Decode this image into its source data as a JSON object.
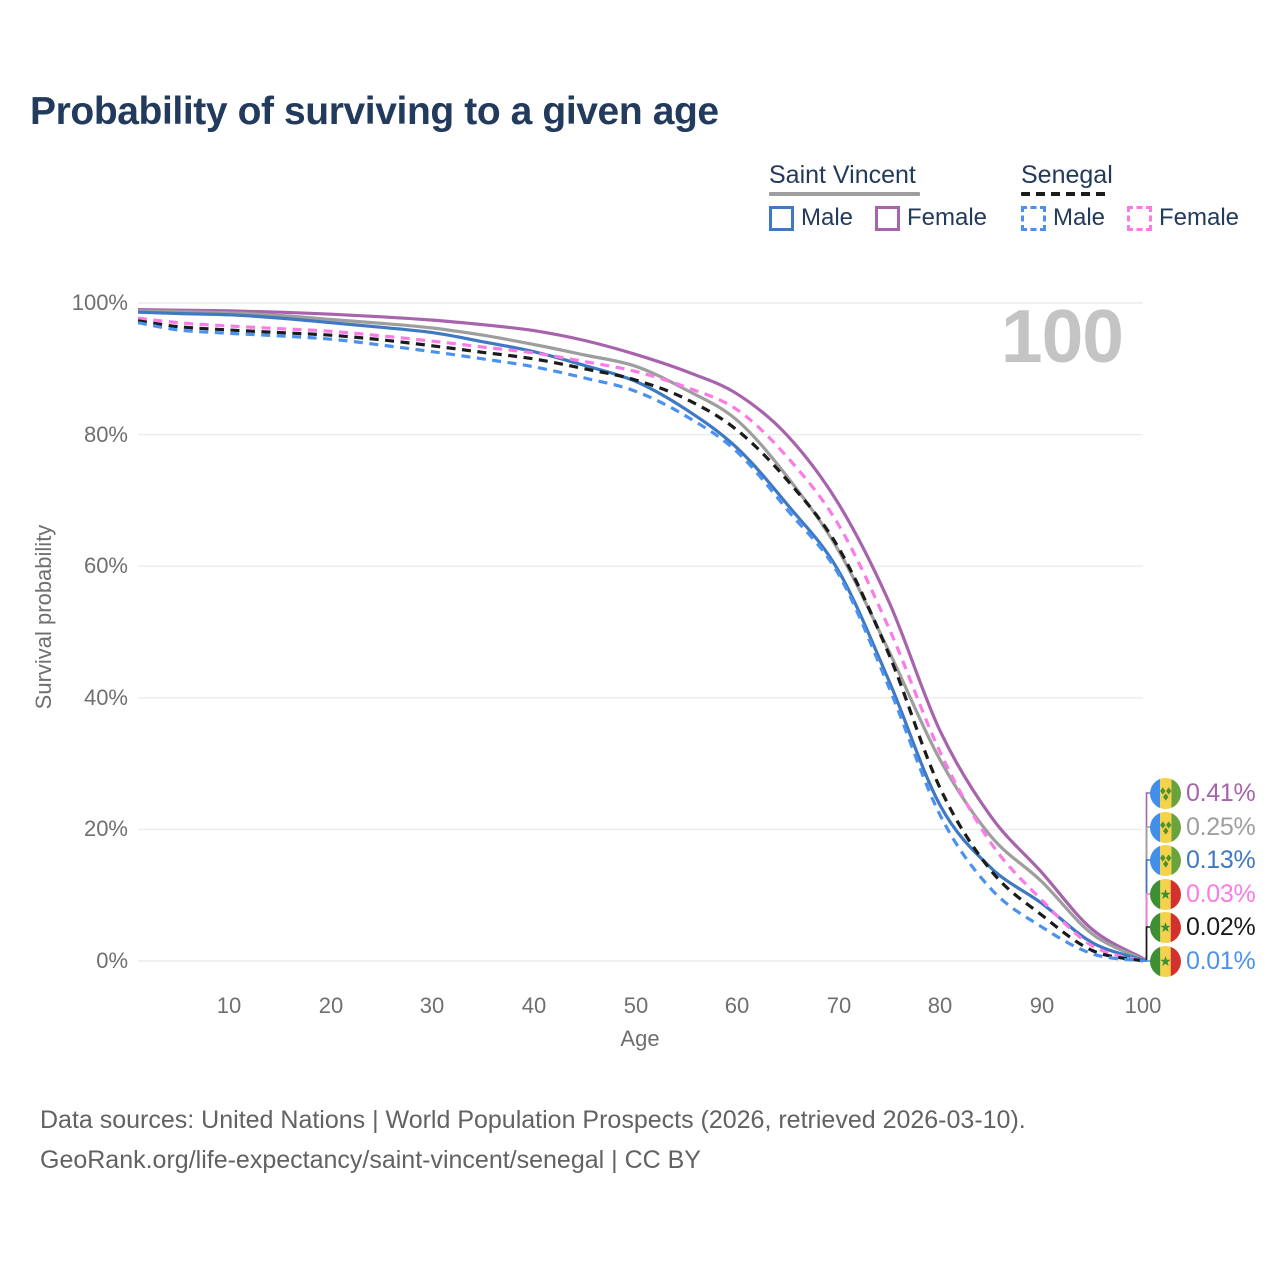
{
  "title": "Probability of surviving to a given age",
  "watermark": "100",
  "legend": {
    "groups": [
      {
        "name": "Saint Vincent",
        "line_style": "solid",
        "line_color": "#9e9e9e",
        "items": [
          {
            "label": "Male",
            "color": "#3e79c2",
            "box_style": "solid"
          },
          {
            "label": "Female",
            "color": "#a763ab",
            "box_style": "solid"
          }
        ]
      },
      {
        "name": "Senegal",
        "line_style": "dashed",
        "line_color": "#1b1b1b",
        "items": [
          {
            "label": "Male",
            "color": "#4b92f0",
            "box_style": "dashed"
          },
          {
            "label": "Female",
            "color": "#f97ce6",
            "box_style": "dashed"
          }
        ]
      }
    ]
  },
  "chart_data": {
    "type": "line",
    "title": "Probability of surviving to a given age",
    "xlabel": "Age",
    "ylabel": "Survival probability",
    "xlim": [
      1,
      100
    ],
    "ylim": [
      0,
      100
    ],
    "grid": "horizontal",
    "legend_position": "top-right",
    "x_ticks": [
      10,
      20,
      30,
      40,
      50,
      60,
      70,
      80,
      90,
      100
    ],
    "x_tick_labels": [
      "10",
      "20",
      "30",
      "40",
      "50",
      "60",
      "70",
      "80",
      "90",
      "100"
    ],
    "y_gridlines": [
      100,
      80,
      60,
      40,
      20,
      0
    ],
    "y_tick_labels": [
      "100%",
      "80%",
      "60%",
      "40%",
      "20%",
      "0%"
    ],
    "x": [
      1,
      5,
      10,
      15,
      20,
      25,
      30,
      35,
      40,
      45,
      50,
      55,
      60,
      65,
      70,
      75,
      80,
      85,
      90,
      95,
      100
    ],
    "series": [
      {
        "name": "Saint Vincent Female",
        "country": "Saint Vincent",
        "sex": "Female",
        "color": "#a763ab",
        "dashed": false,
        "end_label": "0.41%",
        "flag": "saint-vincent",
        "values": [
          99.0,
          98.9,
          98.8,
          98.6,
          98.3,
          97.9,
          97.4,
          96.7,
          95.8,
          94.3,
          92.2,
          89.6,
          86.2,
          79.8,
          69.5,
          54.5,
          35.0,
          22.0,
          13.5,
          4.8,
          0.41
        ]
      },
      {
        "name": "Saint Vincent",
        "country": "Saint Vincent",
        "sex": "Both",
        "color": "#9e9e9e",
        "dashed": false,
        "end_label": "0.25%",
        "flag": "saint-vincent",
        "values": [
          98.8,
          98.7,
          98.5,
          98.1,
          97.5,
          96.9,
          96.2,
          95.1,
          93.7,
          92.1,
          90.4,
          86.8,
          82.2,
          73.5,
          62.4,
          47.0,
          30.6,
          19.0,
          12.1,
          4.1,
          0.25
        ]
      },
      {
        "name": "Saint Vincent Male",
        "country": "Saint Vincent",
        "sex": "Male",
        "color": "#3e79c2",
        "dashed": false,
        "end_label": "0.13%",
        "flag": "saint-vincent",
        "values": [
          98.6,
          98.4,
          98.2,
          97.7,
          97.0,
          96.3,
          95.5,
          94.1,
          92.6,
          90.5,
          88.1,
          83.8,
          78.0,
          69.3,
          59.3,
          42.5,
          23.7,
          14.2,
          8.8,
          2.8,
          0.13
        ]
      },
      {
        "name": "Senegal Female",
        "country": "Senegal",
        "sex": "Female",
        "color": "#f97ce6",
        "dashed": true,
        "end_label": "0.03%",
        "flag": "senegal",
        "values": [
          97.7,
          97.0,
          96.5,
          96.1,
          95.7,
          95.0,
          94.2,
          93.3,
          92.4,
          91.1,
          89.6,
          87.2,
          83.8,
          76.5,
          66.3,
          50.5,
          31.8,
          18.0,
          9.3,
          2.3,
          0.03
        ]
      },
      {
        "name": "Senegal",
        "country": "Senegal",
        "sex": "Both",
        "color": "#1b1b1b",
        "dashed": true,
        "end_label": "0.02%",
        "flag": "senegal",
        "values": [
          97.3,
          96.4,
          95.9,
          95.5,
          95.1,
          94.4,
          93.5,
          92.5,
          91.5,
          90.0,
          88.3,
          85.4,
          80.7,
          73.0,
          62.8,
          46.5,
          26.3,
          13.8,
          7.0,
          1.6,
          0.02
        ]
      },
      {
        "name": "Senegal Male",
        "country": "Senegal",
        "sex": "Male",
        "color": "#4b92f0",
        "dashed": true,
        "end_label": "0.01%",
        "flag": "senegal",
        "values": [
          97.0,
          95.9,
          95.4,
          95.0,
          94.5,
          93.6,
          92.6,
          91.5,
          90.3,
          88.6,
          86.6,
          82.8,
          77.4,
          68.5,
          58.8,
          41.5,
          22.2,
          11.0,
          5.2,
          1.1,
          0.01
        ]
      }
    ]
  },
  "footer": {
    "line1": "Data sources: United Nations | World Population Prospects (2026, retrieved 2026-03-10).",
    "line2": "GeoRank.org/life-expectancy/saint-vincent/senegal | CC BY"
  }
}
